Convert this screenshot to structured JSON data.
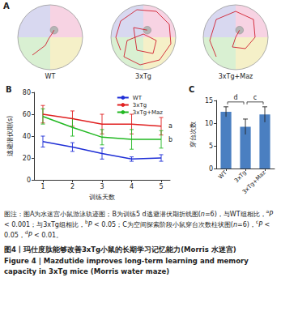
{
  "panel_a": {
    "label": "A",
    "groups": [
      "WT",
      "3xTg",
      "3xTg+Maz"
    ]
  },
  "chart_data": [
    {
      "type": "line",
      "title": "B",
      "x_label": "训练天数",
      "y_label": "逃避潜伏期(s)",
      "x": [
        1,
        2,
        3,
        4,
        5
      ],
      "xlim": [
        0.7,
        5.3
      ],
      "xticks": [
        1,
        2,
        3,
        4,
        5
      ],
      "ylim": [
        0,
        80
      ],
      "yticks": [
        0,
        20,
        40,
        60,
        80
      ],
      "grid": false,
      "legend": "upper right",
      "marker": "none",
      "series": [
        {
          "name": "WT",
          "color": "#1f2fd6",
          "values": [
            35,
            30,
            24,
            19,
            20
          ],
          "errors": [
            5,
            4,
            5,
            2,
            3
          ]
        },
        {
          "name": "3xTg",
          "color": "#e02020",
          "values": [
            60,
            56,
            51,
            51,
            49
          ],
          "errors": [
            8,
            7,
            9,
            9,
            8
          ]
        },
        {
          "name": "3xTg+Maz",
          "color": "#22b822",
          "values": [
            58,
            48,
            39,
            37,
            37
          ],
          "errors": [
            7,
            8,
            7,
            9,
            8
          ]
        }
      ],
      "annotations": [
        {
          "text": "a",
          "series": "3xTg"
        },
        {
          "text": "b",
          "series": "3xTg+Maz"
        }
      ]
    },
    {
      "type": "bar",
      "title": "C",
      "y_label": "穿台次数",
      "categories": [
        "WT",
        "3xTg",
        "3xTg+Maz"
      ],
      "values": [
        12.5,
        9.2,
        11.9
      ],
      "errors": [
        1.1,
        1.7,
        1.7
      ],
      "color": "#4a7fc1",
      "ylim": [
        0,
        15
      ],
      "yticks": [
        0,
        5,
        10,
        15
      ],
      "grid": false,
      "annotations": [
        {
          "text": "d",
          "between": [
            "WT",
            "3xTg"
          ]
        },
        {
          "text": "c",
          "between": [
            "3xTg",
            "3xTg+Maz"
          ]
        }
      ]
    }
  ],
  "caption": {
    "note": [
      {
        "text": "图注：图A为水迷宫小鼠游泳轨迹图；B为训练5 d逃避潜伏期折线图("
      },
      {
        "text": "n",
        "style": "italic"
      },
      {
        "text": "=6)，与WT组相比，"
      },
      {
        "text": "a",
        "style": "sup"
      },
      {
        "text": "P",
        "style": "italic"
      },
      {
        "text": " < 0.001；与3xTg组相比，"
      },
      {
        "text": "b",
        "style": "sup"
      },
      {
        "text": "P",
        "style": "italic"
      },
      {
        "text": " < 0.05；C为空间探索阶段小鼠穿台次数柱状图("
      },
      {
        "text": "n",
        "style": "italic"
      },
      {
        "text": "=6)，"
      },
      {
        "text": "c",
        "style": "sup"
      },
      {
        "text": "P",
        "style": "italic"
      },
      {
        "text": " < 0.05，"
      },
      {
        "text": "d",
        "style": "sup"
      },
      {
        "text": "P",
        "style": "italic"
      },
      {
        "text": " < 0.01。"
      }
    ],
    "title_zh": "图4丨玛仕度肽能够改善3xTg小鼠的长期学习记忆能力(Morris 水迷宫)",
    "title_en": "Figure 4 | Mazdutide improves long-term learning and memory capacity in 3xTg mice (Morris water maze)"
  }
}
